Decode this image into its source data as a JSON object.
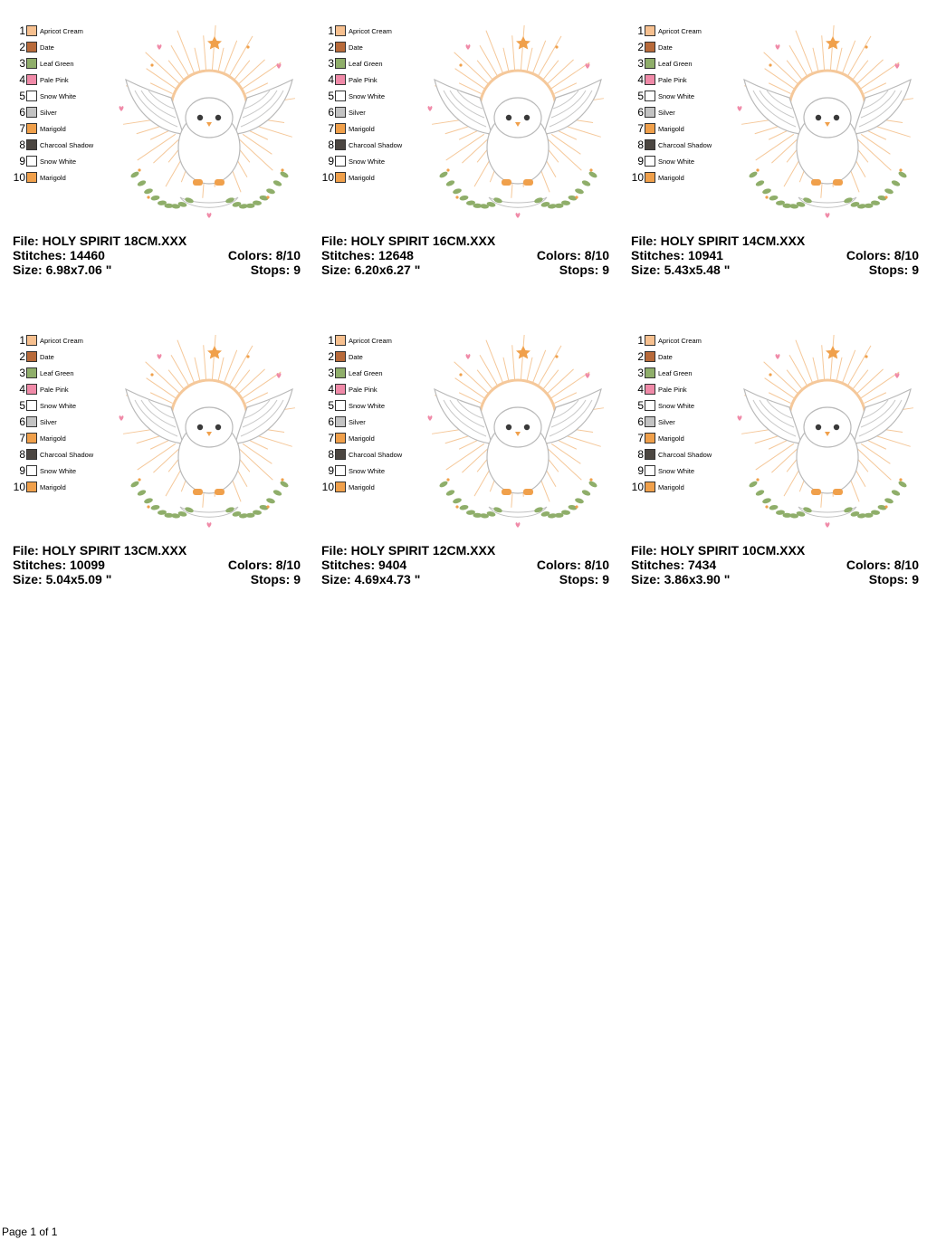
{
  "palette": [
    {
      "n": "1",
      "name": "Apricot Cream",
      "color": "#f7c08f"
    },
    {
      "n": "2",
      "name": "Date",
      "color": "#b86a3a"
    },
    {
      "n": "3",
      "name": "Leaf Green",
      "color": "#8fae6a"
    },
    {
      "n": "4",
      "name": "Pale Pink",
      "color": "#f08aa8"
    },
    {
      "n": "5",
      "name": "Snow White",
      "color": "#ffffff"
    },
    {
      "n": "6",
      "name": "Silver",
      "color": "#c3c3c3"
    },
    {
      "n": "7",
      "name": "Marigold",
      "color": "#f0a04b"
    },
    {
      "n": "8",
      "name": "Charcoal Shadow",
      "color": "#4b4641"
    },
    {
      "n": "9",
      "name": "Snow White",
      "color": "#ffffff"
    },
    {
      "n": "10",
      "name": "Marigold",
      "color": "#f0a04b"
    }
  ],
  "designs": [
    {
      "file": "File: HOLY SPIRIT 18CM.XXX",
      "stitches": "Stitches: 14460",
      "colors": "Colors: 8/10",
      "size": "Size: 6.98x7.06 \"",
      "stops": "Stops: 9"
    },
    {
      "file": "File: HOLY SPIRIT 16CM.XXX",
      "stitches": "Stitches: 12648",
      "colors": "Colors: 8/10",
      "size": "Size: 6.20x6.27 \"",
      "stops": "Stops: 9"
    },
    {
      "file": "File: HOLY SPIRIT 14CM.XXX",
      "stitches": "Stitches: 10941",
      "colors": "Colors: 8/10",
      "size": "Size: 5.43x5.48 \"",
      "stops": "Stops: 9"
    },
    {
      "file": "File: HOLY SPIRIT 13CM.XXX",
      "stitches": "Stitches: 10099",
      "colors": "Colors: 8/10",
      "size": "Size: 5.04x5.09 \"",
      "stops": "Stops: 9"
    },
    {
      "file": "File: HOLY SPIRIT 12CM.XXX",
      "stitches": "Stitches: 9404",
      "colors": "Colors: 8/10",
      "size": "Size: 4.69x4.73 \"",
      "stops": "Stops: 9"
    },
    {
      "file": "File: HOLY SPIRIT 10CM.XXX",
      "stitches": "Stitches: 7434",
      "colors": "Colors: 8/10",
      "size": "Size: 3.86x3.90 \"",
      "stops": "Stops: 9"
    }
  ],
  "footer": "Page 1 of 1"
}
